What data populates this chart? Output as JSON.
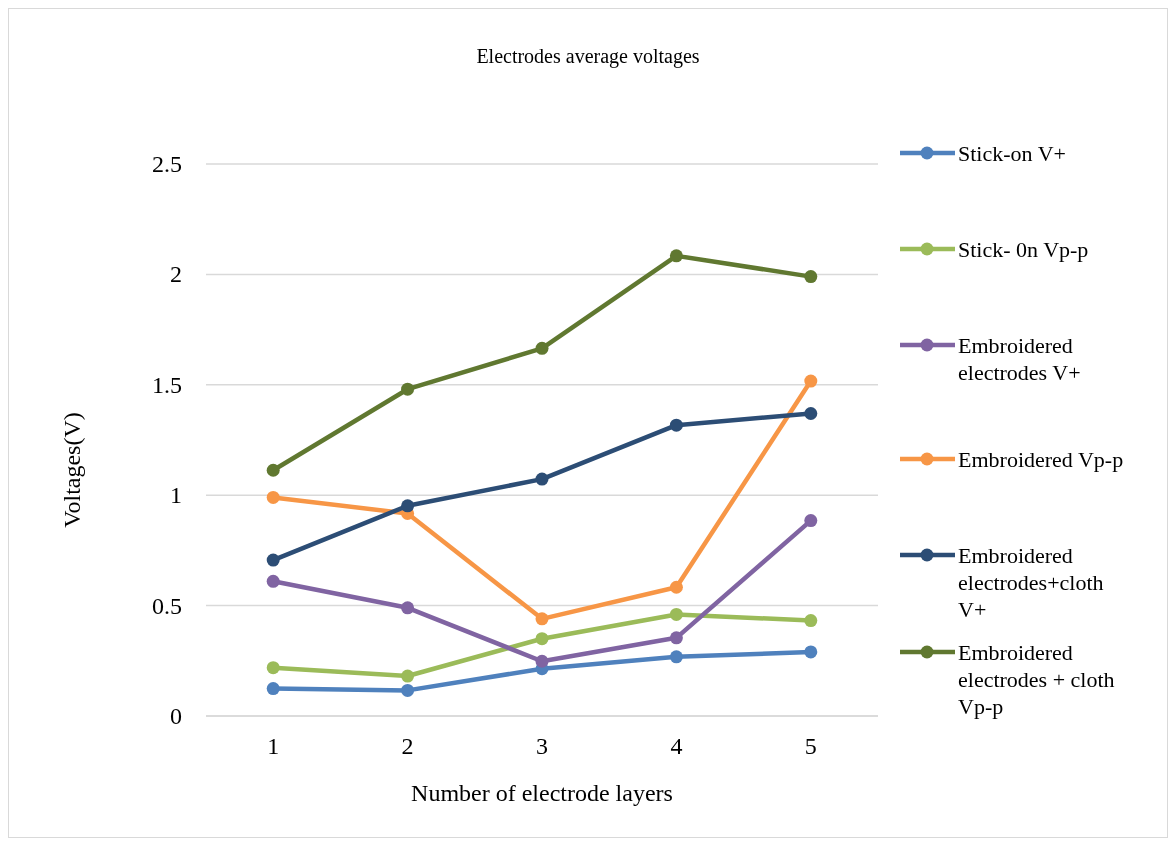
{
  "chart_data": {
    "type": "line",
    "title": "Electrodes average voltages",
    "xlabel": "Number of electrode layers",
    "ylabel": "Voltages(V)",
    "categories": [
      "1",
      "2",
      "3",
      "4",
      "5"
    ],
    "series": [
      {
        "name": "Stick-on V+",
        "color": "#4f81bd",
        "values": [
          0.124,
          0.116,
          0.214,
          0.268,
          0.29
        ]
      },
      {
        "name": "Stick- 0n Vp-p",
        "color": "#9bbb59",
        "values": [
          0.219,
          0.181,
          0.35,
          0.46,
          0.432
        ]
      },
      {
        "name": "Embroidered electrodes V+",
        "color": "#8064a2",
        "values": [
          0.61,
          0.49,
          0.248,
          0.354,
          0.885
        ]
      },
      {
        "name": "Embroidered Vp-p",
        "color": "#f79646",
        "values": [
          0.99,
          0.917,
          0.44,
          0.583,
          1.517
        ]
      },
      {
        "name": "Embroidered electrodes+cloth V+",
        "color": "#2c4d75",
        "values": [
          0.706,
          0.952,
          1.073,
          1.317,
          1.37
        ]
      },
      {
        "name": "Embroidered electrodes + cloth Vp-p",
        "color": "#607830",
        "values": [
          1.113,
          1.48,
          1.665,
          2.084,
          1.99
        ]
      }
    ],
    "ylim": [
      0,
      2.5
    ],
    "yticks": [
      {
        "value": 0,
        "label": "0"
      },
      {
        "value": 0.5,
        "label": "0.5"
      },
      {
        "value": 1,
        "label": "1"
      },
      {
        "value": 1.5,
        "label": "1.5"
      },
      {
        "value": 2,
        "label": "2"
      },
      {
        "value": 2.5,
        "label": "2.5"
      }
    ],
    "grid": "y",
    "legend": "right",
    "marker": "circle"
  }
}
